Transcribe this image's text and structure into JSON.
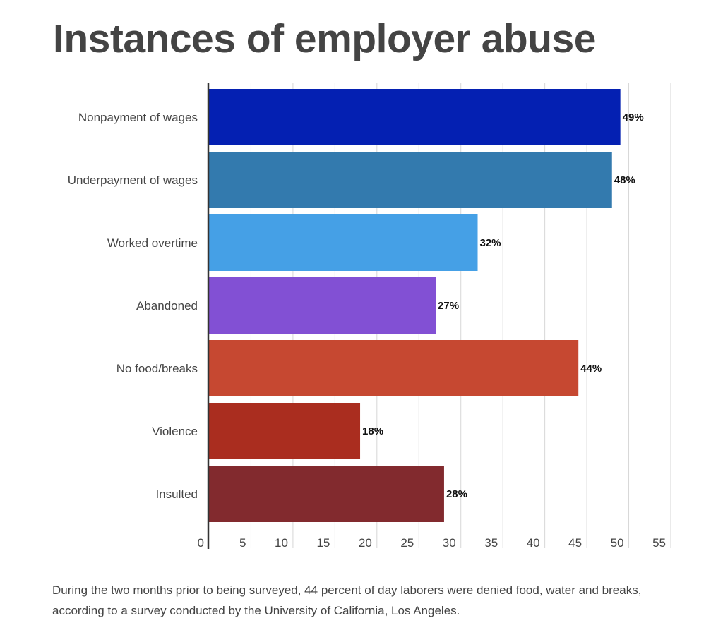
{
  "chart_data": {
    "type": "bar",
    "orientation": "horizontal",
    "title": "Instances of employer abuse",
    "categories": [
      "Nonpayment of wages",
      "Underpayment of wages",
      "Worked overtime",
      "Abandoned",
      "No food/breaks",
      "Violence",
      "Insulted"
    ],
    "values": [
      49,
      48,
      32,
      27,
      44,
      18,
      28
    ],
    "data_labels": [
      "49%",
      "48%",
      "32%",
      "27%",
      "44%",
      "18%",
      "28%"
    ],
    "colors": [
      "#0420b2",
      "#337aae",
      "#45a0e6",
      "#8250d4",
      "#c64831",
      "#aa2d1f",
      "#822a2e"
    ],
    "xlim": [
      0,
      55
    ],
    "xticks": [
      0,
      5,
      10,
      15,
      20,
      25,
      30,
      35,
      40,
      45,
      50,
      55
    ],
    "xlabel": "",
    "ylabel": "",
    "grid": true,
    "caption": "During the two months prior to being surveyed, 44 percent of day laborers were denied food, water and breaks, according to a survey conducted by the University of California, Los Angeles."
  }
}
